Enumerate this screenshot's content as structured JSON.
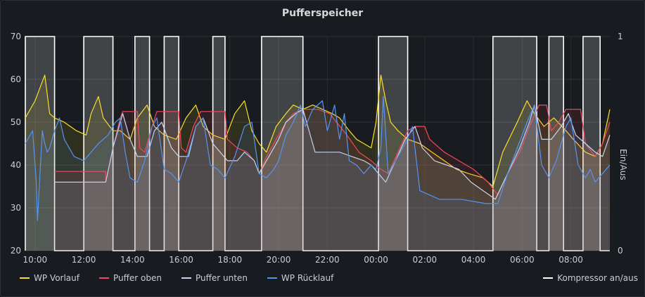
{
  "chart_data": {
    "type": "line",
    "title": "Pufferspeicher",
    "y_left": {
      "ticks": [
        "20",
        "30",
        "40",
        "50",
        "60",
        "70"
      ],
      "min": 20,
      "max": 70
    },
    "y_right": {
      "label": "Ein/Aus",
      "ticks": [
        "0",
        "1"
      ],
      "min": 0,
      "max": 1
    },
    "x_ticks": [
      "10:00",
      "12:00",
      "14:00",
      "16:00",
      "18:00",
      "20:00",
      "22:00",
      "00:00",
      "02:00",
      "04:00",
      "06:00",
      "08:00"
    ],
    "x_range": [
      9.6,
      33.6
    ],
    "series": [
      {
        "name": "WP Vorlauf",
        "color": "#fade2a",
        "points": [
          [
            9.6,
            51
          ],
          [
            10.0,
            55
          ],
          [
            10.4,
            61
          ],
          [
            10.6,
            52
          ],
          [
            10.8,
            51
          ],
          [
            11.2,
            50
          ],
          [
            11.7,
            48
          ],
          [
            12.1,
            47
          ],
          [
            12.3,
            52
          ],
          [
            12.6,
            56
          ],
          [
            12.8,
            51
          ],
          [
            13.2,
            48
          ],
          [
            13.5,
            48
          ],
          [
            13.9,
            46
          ],
          [
            14.2,
            51
          ],
          [
            14.6,
            54
          ],
          [
            14.9,
            49
          ],
          [
            15.3,
            47
          ],
          [
            15.8,
            46
          ],
          [
            16.2,
            51
          ],
          [
            16.6,
            54
          ],
          [
            16.9,
            49
          ],
          [
            17.3,
            47
          ],
          [
            17.8,
            46
          ],
          [
            18.2,
            52
          ],
          [
            18.6,
            55
          ],
          [
            18.9,
            48
          ],
          [
            19.2,
            45
          ],
          [
            19.5,
            43
          ],
          [
            19.9,
            49
          ],
          [
            20.3,
            52
          ],
          [
            20.6,
            54
          ],
          [
            21.0,
            53
          ],
          [
            21.4,
            54
          ],
          [
            21.8,
            53
          ],
          [
            22.2,
            52
          ],
          [
            22.5,
            51
          ],
          [
            22.9,
            48
          ],
          [
            23.2,
            46
          ],
          [
            23.5,
            45
          ],
          [
            23.8,
            44
          ],
          [
            24.0,
            50
          ],
          [
            24.2,
            61
          ],
          [
            24.4,
            55
          ],
          [
            24.6,
            50
          ],
          [
            24.9,
            48
          ],
          [
            25.3,
            46
          ],
          [
            25.8,
            45
          ],
          [
            26.3,
            43
          ],
          [
            26.8,
            41
          ],
          [
            27.3,
            39
          ],
          [
            27.8,
            38
          ],
          [
            28.4,
            37
          ],
          [
            28.8,
            35
          ],
          [
            29.2,
            43
          ],
          [
            29.8,
            50
          ],
          [
            30.2,
            55
          ],
          [
            30.5,
            52
          ],
          [
            30.9,
            49
          ],
          [
            31.3,
            51
          ],
          [
            31.8,
            48
          ],
          [
            32.1,
            46
          ],
          [
            32.6,
            43
          ],
          [
            33.0,
            42
          ],
          [
            33.3,
            45
          ],
          [
            33.6,
            53
          ]
        ]
      },
      {
        "name": "Puffer oben",
        "color": "#f2495c",
        "points": [
          [
            10.8,
            38.5
          ],
          [
            12.9,
            38.5
          ],
          [
            12.9,
            36
          ],
          [
            13.2,
            44
          ],
          [
            13.5,
            51
          ],
          [
            13.6,
            52.5
          ],
          [
            14.2,
            52.5
          ],
          [
            14.3,
            44
          ],
          [
            14.5,
            43
          ],
          [
            14.8,
            49
          ],
          [
            15.0,
            52.5
          ],
          [
            15.9,
            52.5
          ],
          [
            16.0,
            44
          ],
          [
            16.2,
            43
          ],
          [
            16.5,
            49
          ],
          [
            16.8,
            52.5
          ],
          [
            17.8,
            52.5
          ],
          [
            17.9,
            46
          ],
          [
            18.3,
            44
          ],
          [
            18.7,
            43
          ],
          [
            19.0,
            41
          ],
          [
            19.2,
            38
          ],
          [
            19.5,
            42
          ],
          [
            19.9,
            46
          ],
          [
            20.3,
            50
          ],
          [
            20.6,
            52
          ],
          [
            21.0,
            53
          ],
          [
            21.6,
            53
          ],
          [
            22.1,
            52
          ],
          [
            22.8,
            47
          ],
          [
            23.3,
            43
          ],
          [
            23.8,
            41
          ],
          [
            24.2,
            39
          ],
          [
            24.5,
            38
          ],
          [
            24.9,
            43
          ],
          [
            25.3,
            48
          ],
          [
            25.6,
            49
          ],
          [
            26.0,
            49
          ],
          [
            26.2,
            46
          ],
          [
            26.8,
            43
          ],
          [
            27.4,
            41
          ],
          [
            28.0,
            39
          ],
          [
            28.6,
            36
          ],
          [
            29.0,
            33
          ],
          [
            29.4,
            38
          ],
          [
            29.9,
            43
          ],
          [
            30.3,
            49
          ],
          [
            30.7,
            54
          ],
          [
            31.0,
            54
          ],
          [
            31.2,
            48
          ],
          [
            31.5,
            50
          ],
          [
            31.8,
            53
          ],
          [
            32.4,
            53
          ],
          [
            32.6,
            45
          ],
          [
            33.0,
            42
          ],
          [
            33.3,
            45
          ],
          [
            33.6,
            50
          ]
        ]
      },
      {
        "name": "Puffer unten",
        "color": "#c8d6f0",
        "points": [
          [
            10.8,
            36
          ],
          [
            12.9,
            36
          ],
          [
            13.2,
            44
          ],
          [
            13.6,
            52
          ],
          [
            13.9,
            46
          ],
          [
            14.2,
            42
          ],
          [
            14.6,
            42
          ],
          [
            14.9,
            48
          ],
          [
            15.2,
            50
          ],
          [
            15.6,
            44
          ],
          [
            15.9,
            42
          ],
          [
            16.3,
            42
          ],
          [
            16.6,
            49
          ],
          [
            16.9,
            51
          ],
          [
            17.3,
            45
          ],
          [
            17.6,
            43
          ],
          [
            17.9,
            41
          ],
          [
            18.3,
            41
          ],
          [
            18.6,
            43
          ],
          [
            19.0,
            41
          ],
          [
            19.2,
            38
          ],
          [
            19.6,
            42
          ],
          [
            20.0,
            46
          ],
          [
            20.3,
            50
          ],
          [
            20.7,
            52
          ],
          [
            21.0,
            53
          ],
          [
            21.5,
            43
          ],
          [
            22.0,
            43
          ],
          [
            22.5,
            43
          ],
          [
            23.0,
            42
          ],
          [
            23.5,
            41
          ],
          [
            23.8,
            40
          ],
          [
            24.1,
            38
          ],
          [
            24.4,
            36
          ],
          [
            24.8,
            41
          ],
          [
            25.2,
            46
          ],
          [
            25.6,
            49
          ],
          [
            25.9,
            44
          ],
          [
            26.4,
            41
          ],
          [
            26.9,
            40
          ],
          [
            27.4,
            39
          ],
          [
            27.9,
            36
          ],
          [
            28.4,
            34
          ],
          [
            28.9,
            32
          ],
          [
            29.4,
            38
          ],
          [
            29.9,
            44
          ],
          [
            30.3,
            50
          ],
          [
            30.5,
            54
          ],
          [
            30.8,
            46
          ],
          [
            31.2,
            46
          ],
          [
            31.6,
            49
          ],
          [
            31.9,
            52
          ],
          [
            32.2,
            47
          ],
          [
            32.6,
            45
          ],
          [
            33.0,
            43
          ],
          [
            33.3,
            42
          ],
          [
            33.6,
            47
          ]
        ]
      },
      {
        "name": "WP Rücklauf",
        "color": "#5794f2",
        "points": [
          [
            9.6,
            45
          ],
          [
            9.8,
            47
          ],
          [
            9.9,
            48
          ],
          [
            10.0,
            40
          ],
          [
            10.05,
            36
          ],
          [
            10.1,
            27
          ],
          [
            10.2,
            38
          ],
          [
            10.3,
            48
          ],
          [
            10.4,
            45
          ],
          [
            10.5,
            43
          ],
          [
            10.6,
            44
          ],
          [
            10.8,
            48
          ],
          [
            11.0,
            51
          ],
          [
            11.2,
            46
          ],
          [
            11.6,
            42
          ],
          [
            12.0,
            41
          ],
          [
            12.3,
            43
          ],
          [
            12.6,
            45
          ],
          [
            13.0,
            47
          ],
          [
            13.3,
            50
          ],
          [
            13.5,
            51
          ],
          [
            13.7,
            43
          ],
          [
            13.9,
            37
          ],
          [
            14.2,
            36
          ],
          [
            14.5,
            41
          ],
          [
            14.8,
            49
          ],
          [
            15.0,
            51
          ],
          [
            15.3,
            39
          ],
          [
            15.6,
            38
          ],
          [
            15.9,
            36
          ],
          [
            16.2,
            41
          ],
          [
            16.6,
            49
          ],
          [
            16.9,
            51
          ],
          [
            17.2,
            40
          ],
          [
            17.5,
            39
          ],
          [
            17.8,
            37
          ],
          [
            18.2,
            42
          ],
          [
            18.6,
            49
          ],
          [
            18.9,
            50
          ],
          [
            19.2,
            38
          ],
          [
            19.5,
            37
          ],
          [
            19.8,
            39
          ],
          [
            20.0,
            41
          ],
          [
            20.3,
            47
          ],
          [
            20.6,
            50
          ],
          [
            20.9,
            54
          ],
          [
            21.1,
            49
          ],
          [
            21.4,
            53
          ],
          [
            21.8,
            55
          ],
          [
            22.0,
            48
          ],
          [
            22.3,
            54
          ],
          [
            22.5,
            46
          ],
          [
            22.7,
            52
          ],
          [
            22.9,
            41
          ],
          [
            23.2,
            40
          ],
          [
            23.5,
            38
          ],
          [
            23.8,
            40
          ],
          [
            24.0,
            39
          ],
          [
            24.2,
            44
          ],
          [
            24.3,
            56
          ],
          [
            24.5,
            38
          ],
          [
            24.8,
            41
          ],
          [
            25.2,
            45
          ],
          [
            25.5,
            49
          ],
          [
            25.8,
            34
          ],
          [
            26.2,
            33
          ],
          [
            26.6,
            32
          ],
          [
            27.0,
            32
          ],
          [
            27.5,
            32
          ],
          [
            28.0,
            31.5
          ],
          [
            28.5,
            31
          ],
          [
            29.0,
            31
          ],
          [
            29.4,
            38
          ],
          [
            29.8,
            44
          ],
          [
            30.2,
            50
          ],
          [
            30.5,
            54
          ],
          [
            30.8,
            40
          ],
          [
            31.1,
            37
          ],
          [
            31.4,
            41
          ],
          [
            31.8,
            49
          ],
          [
            32.0,
            51
          ],
          [
            32.3,
            40
          ],
          [
            32.6,
            37
          ],
          [
            32.8,
            39
          ],
          [
            33.0,
            36
          ],
          [
            33.3,
            38
          ],
          [
            33.6,
            40
          ]
        ]
      }
    ],
    "compressor": {
      "name": "Kompressor an/aus",
      "color": "#ffffff",
      "on_intervals": [
        [
          9.6,
          10.8
        ],
        [
          12.0,
          13.2
        ],
        [
          14.1,
          14.7
        ],
        [
          15.3,
          15.9
        ],
        [
          17.3,
          17.8
        ],
        [
          19.3,
          21.0
        ],
        [
          24.1,
          25.3
        ],
        [
          28.8,
          30.6
        ],
        [
          31.1,
          31.7
        ],
        [
          32.5,
          33.2
        ]
      ]
    }
  }
}
